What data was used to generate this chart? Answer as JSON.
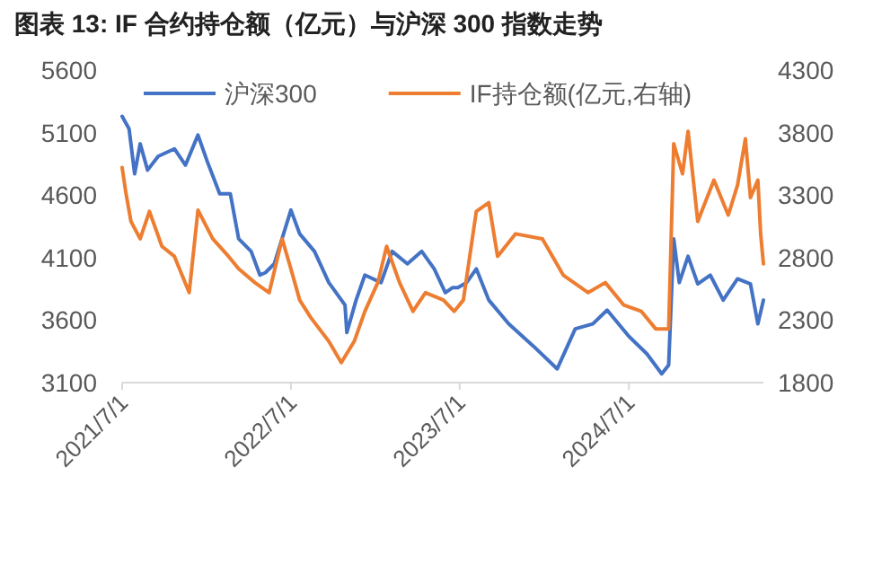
{
  "chart_data": {
    "type": "line",
    "title": "图表 13:   IF 合约持仓额（亿元）与沪深 300 指数走势",
    "legend": "top",
    "xlim": [
      "2021-07-01",
      "2025-04-18"
    ],
    "xticks": [
      {
        "value": "2021-07-01",
        "label": "2021/7/1"
      },
      {
        "value": "2022-07-01",
        "label": "2022/7/1"
      },
      {
        "value": "2023-07-01",
        "label": "2023/7/1"
      },
      {
        "value": "2024-07-01",
        "label": "2024/7/1"
      }
    ],
    "ylim": [
      3100,
      5600
    ],
    "yticks": [
      3100,
      3600,
      4100,
      4600,
      5100,
      5600
    ],
    "y2lim": [
      1800,
      4300
    ],
    "y2ticks": [
      1800,
      2300,
      2800,
      3300,
      3800,
      4300
    ],
    "series": [
      {
        "name": "沪深300",
        "color": "#4472c4",
        "x": [
          "2021-07-01",
          "2021-07-16",
          "2021-07-28",
          "2021-08-09",
          "2021-08-25",
          "2021-09-17",
          "2021-10-22",
          "2021-11-15",
          "2021-12-12",
          "2022-01-01",
          "2022-01-28",
          "2022-02-20",
          "2022-03-10",
          "2022-04-06",
          "2022-04-25",
          "2022-05-07",
          "2022-05-26",
          "2022-07-01",
          "2022-07-20",
          "2022-08-21",
          "2022-09-21",
          "2022-10-26",
          "2022-10-30",
          "2022-11-19",
          "2022-12-08",
          "2023-01-12",
          "2023-02-05",
          "2023-03-10",
          "2023-04-10",
          "2023-05-07",
          "2023-05-31",
          "2023-06-16",
          "2023-06-27",
          "2023-07-16",
          "2023-08-06",
          "2023-09-02",
          "2023-10-15",
          "2023-12-08",
          "2024-01-28",
          "2024-03-07",
          "2024-04-14",
          "2024-05-15",
          "2024-07-01",
          "2024-08-09",
          "2024-09-10",
          "2024-09-25",
          "2024-10-06",
          "2024-10-18",
          "2024-11-06",
          "2024-11-27",
          "2024-12-24",
          "2025-01-21",
          "2025-02-21",
          "2025-03-21",
          "2025-04-06",
          "2025-04-18"
        ],
        "values": [
          5230,
          5130,
          4770,
          5010,
          4800,
          4910,
          4970,
          4840,
          5080,
          4870,
          4610,
          4610,
          4250,
          4150,
          3960,
          3980,
          4050,
          4480,
          4290,
          4150,
          3900,
          3720,
          3500,
          3760,
          3960,
          3900,
          4150,
          4050,
          4150,
          4010,
          3820,
          3860,
          3860,
          3900,
          4010,
          3760,
          3570,
          3390,
          3210,
          3530,
          3570,
          3680,
          3470,
          3330,
          3170,
          3240,
          4250,
          3900,
          4110,
          3890,
          3960,
          3760,
          3930,
          3890,
          3570,
          3760
        ]
      },
      {
        "name": "IF持仓额(亿元,右轴)",
        "color": "#ed7d31",
        "axis": "y2",
        "x": [
          "2021-07-01",
          "2021-07-09",
          "2021-07-20",
          "2021-08-09",
          "2021-08-29",
          "2021-09-25",
          "2021-10-22",
          "2021-11-23",
          "2021-12-12",
          "2022-01-13",
          "2022-02-16",
          "2022-03-10",
          "2022-04-14",
          "2022-05-15",
          "2022-06-12",
          "2022-07-01",
          "2022-07-20",
          "2022-08-13",
          "2022-09-21",
          "2022-10-18",
          "2022-11-15",
          "2022-12-08",
          "2023-01-05",
          "2023-01-24",
          "2023-02-21",
          "2023-03-22",
          "2023-04-18",
          "2023-05-27",
          "2023-06-19",
          "2023-07-09",
          "2023-08-06",
          "2023-09-02",
          "2023-09-21",
          "2023-10-30",
          "2023-12-27",
          "2024-02-10",
          "2024-04-04",
          "2024-05-11",
          "2024-06-20",
          "2024-07-28",
          "2024-08-28",
          "2024-09-25",
          "2024-10-06",
          "2024-10-25",
          "2024-11-06",
          "2024-11-27",
          "2025-01-01",
          "2025-02-01",
          "2025-02-21",
          "2025-03-10",
          "2025-03-21",
          "2025-04-06",
          "2025-04-12",
          "2025-04-18"
        ],
        "values": [
          3520,
          3320,
          3090,
          2950,
          3170,
          2890,
          2810,
          2520,
          3180,
          2950,
          2810,
          2710,
          2600,
          2520,
          2950,
          2710,
          2460,
          2320,
          2130,
          1960,
          2130,
          2370,
          2600,
          2890,
          2600,
          2370,
          2520,
          2460,
          2370,
          2460,
          3170,
          3240,
          2810,
          2990,
          2950,
          2660,
          2520,
          2600,
          2420,
          2370,
          2230,
          2230,
          3710,
          3470,
          3810,
          3090,
          3420,
          3140,
          3380,
          3750,
          3280,
          3420,
          2990,
          2750
        ]
      }
    ]
  }
}
